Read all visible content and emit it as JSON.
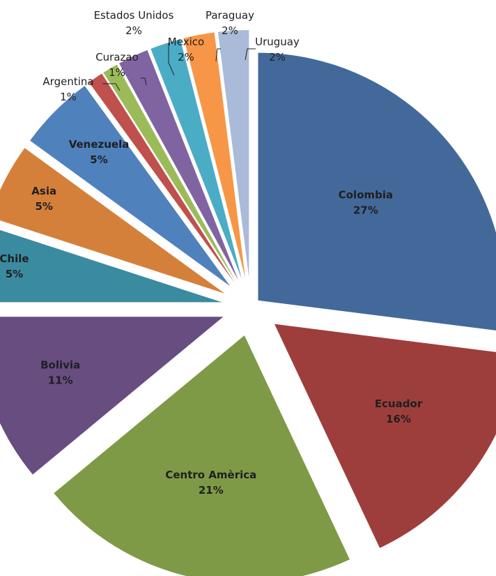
{
  "chart_data": {
    "type": "pie",
    "exploded": true,
    "slices": [
      {
        "label": "Colombia",
        "pct_label": "27%",
        "value": 27,
        "color": "#43699b"
      },
      {
        "label": "Ecuador",
        "pct_label": "16%",
        "value": 16,
        "color": "#9e3e3c"
      },
      {
        "label": "Centro Amèrica",
        "pct_label": "21%",
        "value": 21,
        "color": "#7f9a47"
      },
      {
        "label": "Bolivia",
        "pct_label": "11%",
        "value": 11,
        "color": "#684d80"
      },
      {
        "label": "Chile",
        "pct_label": "5%",
        "value": 5,
        "color": "#3a8ba0"
      },
      {
        "label": "Asia",
        "pct_label": "5%",
        "value": 5,
        "color": "#d5803a"
      },
      {
        "label": "Venezuela",
        "pct_label": "5%",
        "value": 5,
        "color": "#4f81bd"
      },
      {
        "label": "Argentina",
        "pct_label": "1%",
        "value": 1,
        "color": "#c0504d"
      },
      {
        "label": "Curazao",
        "pct_label": "1%",
        "value": 1,
        "color": "#9bbb59"
      },
      {
        "label": "Mexico",
        "pct_label": "2%",
        "value": 2,
        "color": "#8064a2"
      },
      {
        "label": "Estados Unidos",
        "pct_label": "2%",
        "value": 2,
        "color": "#4bacc6"
      },
      {
        "label": "Paraguay",
        "pct_label": "2%",
        "value": 2,
        "color": "#f79646"
      },
      {
        "label": "Uruguay",
        "pct_label": "2%",
        "value": 2,
        "color": "#aabbd9"
      }
    ]
  }
}
